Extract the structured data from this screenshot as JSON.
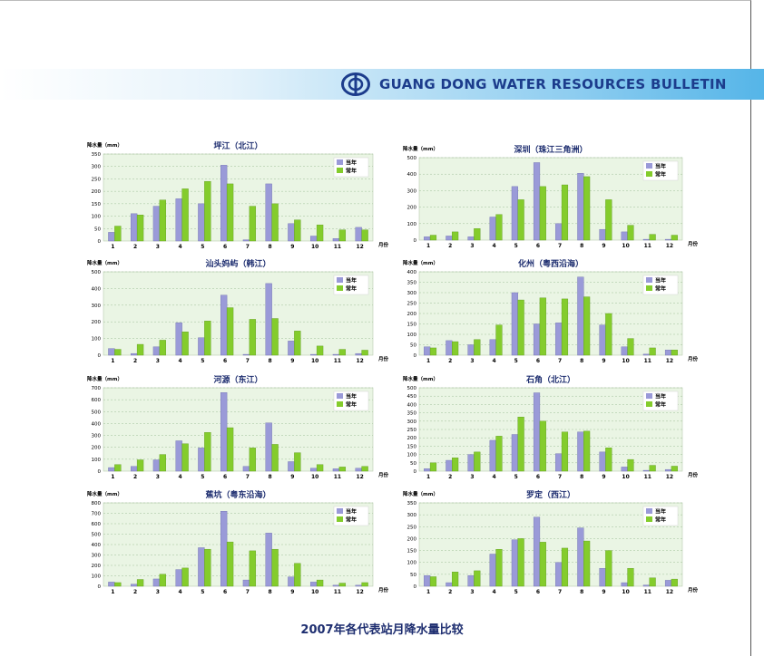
{
  "header": {
    "title": "GUANG DONG WATER RESOURCES BULLETIN",
    "logo_icon": "gdwr-logo-icon"
  },
  "caption": "2007年各代表站月降水量比较",
  "colors": {
    "this_year": "#9a9ad8",
    "normal_year": "#84cc2c",
    "title": "#1e2e70",
    "plot_bg": "#eaf5e4",
    "banner": "#55b5e8"
  },
  "chart_data": [
    {
      "type": "bar",
      "title": "坪江（北江）",
      "ylabel": "降水量（mm）",
      "xlabel": "月份",
      "categories": [
        "1",
        "2",
        "3",
        "4",
        "5",
        "6",
        "7",
        "8",
        "9",
        "10",
        "11",
        "12"
      ],
      "ylim": [
        0,
        350
      ],
      "yticks": [
        0,
        50,
        100,
        150,
        200,
        250,
        300,
        350
      ],
      "series": [
        {
          "name": "当年",
          "values": [
            35,
            110,
            140,
            170,
            150,
            305,
            5,
            230,
            70,
            20,
            10,
            55
          ]
        },
        {
          "name": "常年",
          "values": [
            60,
            105,
            165,
            210,
            240,
            230,
            140,
            150,
            85,
            65,
            45,
            45
          ]
        }
      ]
    },
    {
      "type": "bar",
      "title": "深圳（珠江三角洲）",
      "ylabel": "降水量（mm）",
      "xlabel": "月份",
      "categories": [
        "1",
        "2",
        "3",
        "4",
        "5",
        "6",
        "7",
        "8",
        "9",
        "10",
        "11",
        "12"
      ],
      "ylim": [
        0,
        500
      ],
      "yticks": [
        0,
        100,
        200,
        300,
        400,
        500
      ],
      "series": [
        {
          "name": "当年",
          "values": [
            20,
            25,
            20,
            140,
            325,
            470,
            100,
            405,
            65,
            50,
            5,
            5
          ]
        },
        {
          "name": "常年",
          "values": [
            30,
            50,
            70,
            155,
            245,
            325,
            335,
            385,
            245,
            90,
            35,
            30
          ]
        }
      ]
    },
    {
      "type": "bar",
      "title": "汕头妈屿（韩江）",
      "ylabel": "降水量（mm）",
      "xlabel": "月份",
      "categories": [
        "1",
        "2",
        "3",
        "4",
        "5",
        "6",
        "7",
        "8",
        "9",
        "10",
        "11",
        "12"
      ],
      "ylim": [
        0,
        500
      ],
      "yticks": [
        0,
        100,
        200,
        300,
        400,
        500
      ],
      "series": [
        {
          "name": "当年",
          "values": [
            40,
            10,
            50,
            195,
            105,
            360,
            5,
            430,
            85,
            5,
            5,
            10
          ]
        },
        {
          "name": "常年",
          "values": [
            35,
            65,
            90,
            140,
            205,
            285,
            215,
            220,
            145,
            55,
            35,
            30
          ]
        }
      ]
    },
    {
      "type": "bar",
      "title": "化州（粤西沿海）",
      "ylabel": "降水量（mm）",
      "xlabel": "月份",
      "categories": [
        "1",
        "2",
        "3",
        "4",
        "5",
        "6",
        "7",
        "8",
        "9",
        "10",
        "11",
        "12"
      ],
      "ylim": [
        0,
        400
      ],
      "yticks": [
        0,
        50,
        100,
        150,
        200,
        250,
        300,
        350,
        400
      ],
      "series": [
        {
          "name": "当年",
          "values": [
            40,
            70,
            50,
            75,
            300,
            150,
            155,
            375,
            145,
            40,
            5,
            25
          ]
        },
        {
          "name": "常年",
          "values": [
            35,
            65,
            75,
            145,
            265,
            275,
            270,
            280,
            200,
            80,
            35,
            25
          ]
        }
      ]
    },
    {
      "type": "bar",
      "title": "河源（东江）",
      "ylabel": "降水量（mm）",
      "xlabel": "月份",
      "categories": [
        "1",
        "2",
        "3",
        "4",
        "5",
        "6",
        "7",
        "8",
        "9",
        "10",
        "11",
        "12"
      ],
      "ylim": [
        0,
        700
      ],
      "yticks": [
        0,
        100,
        200,
        300,
        400,
        500,
        600,
        700
      ],
      "series": [
        {
          "name": "当年",
          "values": [
            30,
            40,
            95,
            255,
            195,
            660,
            40,
            405,
            80,
            25,
            20,
            25
          ]
        },
        {
          "name": "常年",
          "values": [
            55,
            95,
            140,
            230,
            325,
            365,
            195,
            225,
            155,
            55,
            35,
            40
          ]
        }
      ]
    },
    {
      "type": "bar",
      "title": "石角（北江）",
      "ylabel": "降水量（mm）",
      "xlabel": "月份",
      "categories": [
        "1",
        "2",
        "3",
        "4",
        "5",
        "6",
        "7",
        "8",
        "9",
        "10",
        "11",
        "12"
      ],
      "ylim": [
        0,
        500
      ],
      "yticks": [
        0,
        50,
        100,
        150,
        200,
        250,
        300,
        350,
        400,
        450,
        500
      ],
      "series": [
        {
          "name": "当年",
          "values": [
            15,
            65,
            100,
            185,
            220,
            470,
            105,
            235,
            115,
            25,
            5,
            10
          ]
        },
        {
          "name": "常年",
          "values": [
            50,
            80,
            115,
            210,
            325,
            300,
            235,
            240,
            140,
            70,
            35,
            30
          ]
        }
      ]
    },
    {
      "type": "bar",
      "title": "蕉坑（粤东沿海）",
      "ylabel": "降水量（mm）",
      "xlabel": "月份",
      "categories": [
        "1",
        "2",
        "3",
        "4",
        "5",
        "6",
        "7",
        "8",
        "9",
        "10",
        "11",
        "12"
      ],
      "ylim": [
        0,
        800
      ],
      "yticks": [
        0,
        100,
        200,
        300,
        400,
        500,
        600,
        700,
        800
      ],
      "series": [
        {
          "name": "当年",
          "values": [
            40,
            20,
            70,
            160,
            370,
            720,
            60,
            510,
            90,
            40,
            10,
            10
          ]
        },
        {
          "name": "常年",
          "values": [
            35,
            65,
            115,
            175,
            355,
            425,
            340,
            355,
            220,
            60,
            30,
            35
          ]
        }
      ]
    },
    {
      "type": "bar",
      "title": "罗定（西江）",
      "ylabel": "降水量（mm）",
      "xlabel": "月份",
      "categories": [
        "1",
        "2",
        "3",
        "4",
        "5",
        "6",
        "7",
        "8",
        "9",
        "10",
        "11",
        "12"
      ],
      "ylim": [
        0,
        350
      ],
      "yticks": [
        0,
        50,
        100,
        150,
        200,
        250,
        300,
        350
      ],
      "series": [
        {
          "name": "当年",
          "values": [
            45,
            15,
            45,
            135,
            195,
            290,
            100,
            245,
            75,
            15,
            5,
            25
          ]
        },
        {
          "name": "常年",
          "values": [
            40,
            60,
            65,
            155,
            200,
            185,
            160,
            190,
            150,
            75,
            35,
            30
          ]
        }
      ]
    }
  ]
}
